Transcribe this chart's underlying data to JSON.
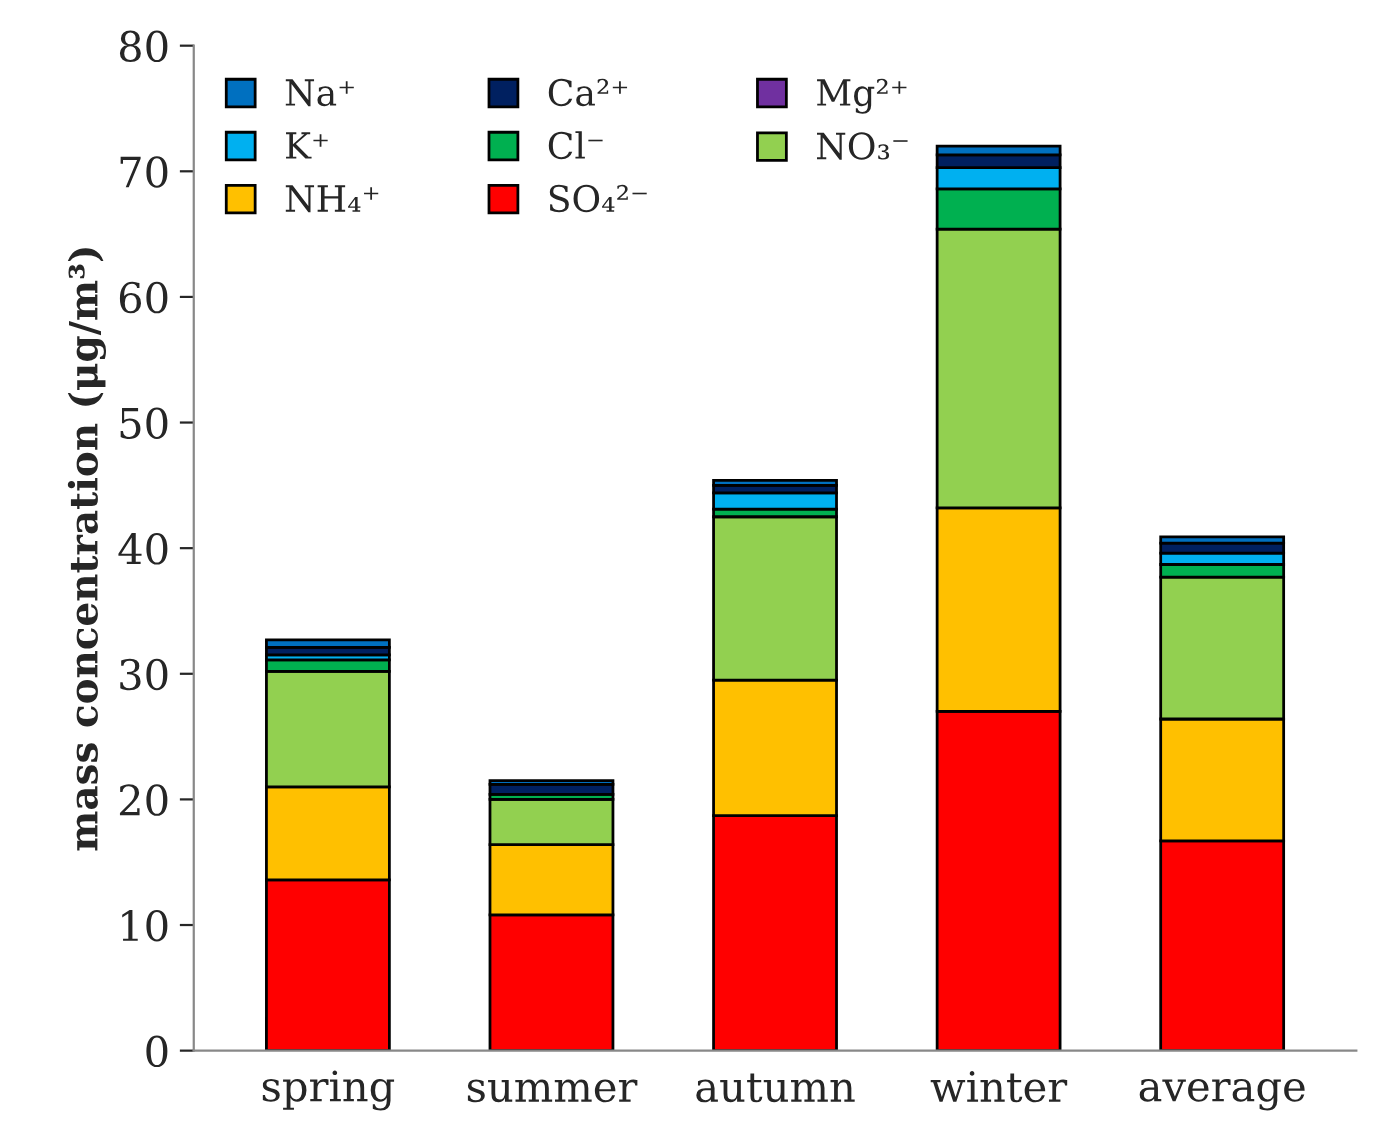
{
  "chart_data": {
    "type": "bar",
    "stacked": true,
    "ylabel": "mass concentration (μg/m³)",
    "categories": [
      "spring",
      "summer",
      "autumn",
      "winter",
      "average"
    ],
    "series": [
      {
        "name": "SO₄²⁻",
        "color": "#ff0000",
        "values": [
          13.6,
          10.8,
          18.7,
          27.0,
          16.7
        ]
      },
      {
        "name": "NH₄⁺",
        "color": "#ffc000",
        "values": [
          7.4,
          5.6,
          10.8,
          16.2,
          9.7
        ]
      },
      {
        "name": "NO₃⁻",
        "color": "#92d050",
        "values": [
          9.2,
          3.6,
          13.0,
          22.2,
          11.3
        ]
      },
      {
        "name": "Cl⁻",
        "color": "#00b050",
        "values": [
          0.9,
          0.4,
          0.6,
          3.2,
          1.0
        ]
      },
      {
        "name": "K⁺",
        "color": "#00b0f0",
        "values": [
          0.4,
          null,
          1.3,
          1.7,
          0.9
        ]
      },
      {
        "name": "Mg²⁺",
        "color": "#7030a0",
        "values": [
          null,
          null,
          null,
          null,
          null
        ]
      },
      {
        "name": "Ca²⁺",
        "color": "#002060",
        "values": [
          0.6,
          0.8,
          0.6,
          1.0,
          0.8
        ]
      },
      {
        "name": "Na⁺",
        "color": "#0070c0",
        "values": [
          0.6,
          0.3,
          0.4,
          0.7,
          0.5
        ]
      }
    ],
    "ylim": [
      0,
      80
    ],
    "yticks": [
      0,
      10,
      20,
      30,
      40,
      50,
      60,
      70,
      80
    ],
    "grid": false,
    "legend": "top left"
  }
}
